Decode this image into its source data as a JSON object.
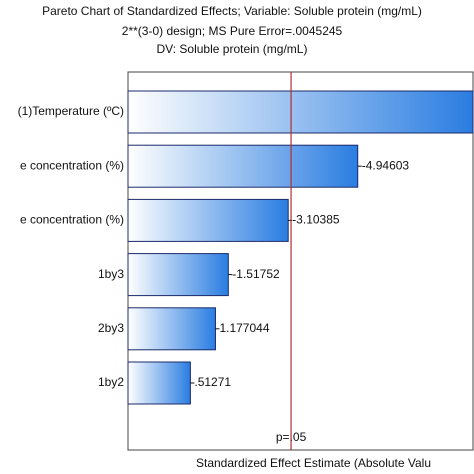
{
  "chart_data": {
    "type": "pareto",
    "title": "Pareto Chart of Standardized Effects; Variable: Soluble protein (mg/mL)",
    "subtitle": "2**(3-0) design; MS Pure Error=.0045245",
    "subtitle2": "DV: Soluble protein (mg/mL)",
    "x_label": "Standardized Effect Estimate (Absolute Valu",
    "categories": [
      "(1)Temperature (ºC)",
      "e concentration (%)",
      "e concentration (%)",
      "1by3",
      "2by3",
      "1by2"
    ],
    "values": [
      8.0,
      -4.94603,
      -3.10385,
      -1.51752,
      1.177044,
      0.51271
    ],
    "value_labels": [
      null,
      "-4.94603",
      "-3.10385",
      "-1.51752",
      "1.177044",
      ".51271"
    ],
    "color": "#2a7de1",
    "xlim": [
      -1.14,
      8.0
    ],
    "reference_line": {
      "value": 3.18,
      "label": "p=.05",
      "color": "#b03030"
    }
  }
}
